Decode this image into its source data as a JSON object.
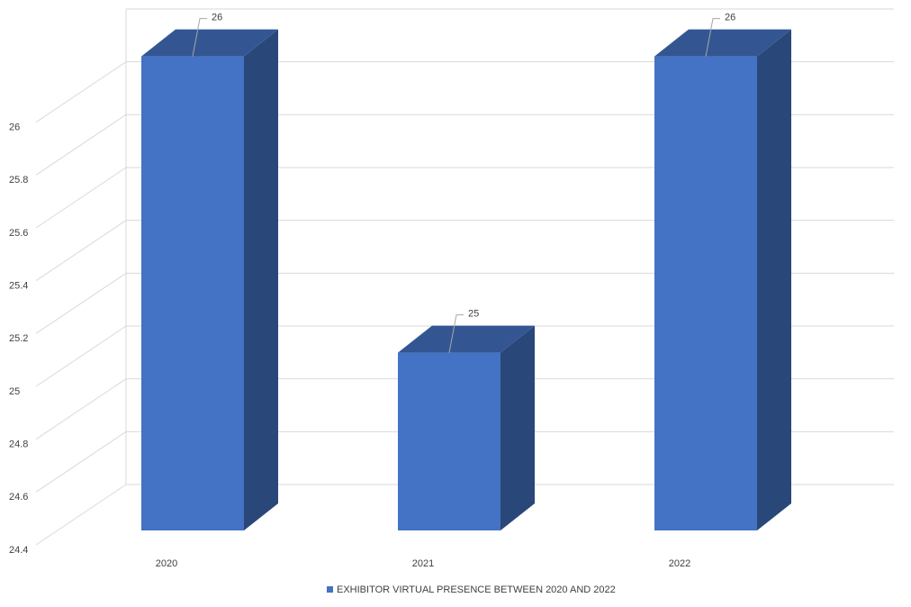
{
  "chart_data": {
    "type": "bar3d",
    "categories": [
      "2020",
      "2021",
      "2022"
    ],
    "series": [
      {
        "name": "EXHIBITOR VIRTUAL PRESENCE BETWEEN 2020 AND 2022",
        "color": "#4472c4",
        "values": [
          26,
          25,
          26
        ]
      }
    ],
    "ylim": [
      24.4,
      26.2
    ],
    "yticks": [
      24.4,
      24.6,
      24.8,
      25,
      25.2,
      25.4,
      25.6,
      25.8,
      26
    ],
    "grid": true,
    "legend": "bottom"
  }
}
